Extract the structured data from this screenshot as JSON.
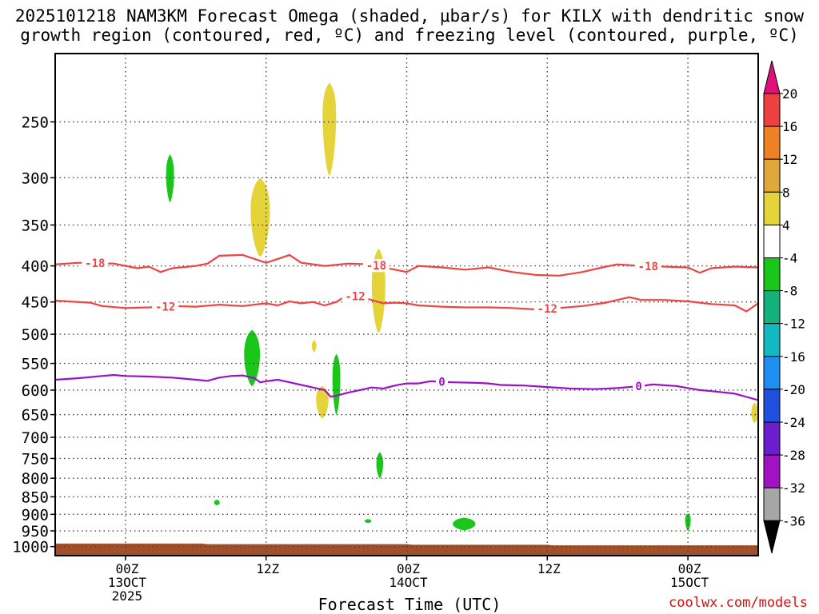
{
  "title": {
    "line1": "2025101218 NAM3KM Forecast Omega (shaded, μbar/s) for KILX with dendritic snow",
    "line2": "growth region (contoured, red, ºC) and freezing level (contoured, purple, ºC)"
  },
  "footer": {
    "xlabel": "Forecast Time (UTC)",
    "credit": "coolwx.com/models"
  },
  "chart_data": {
    "type": "heatmap",
    "x_unit": "forecast hour from 2025-10-12 18Z",
    "xlim": [
      0,
      60
    ],
    "ylim": [
      200,
      1030
    ],
    "y_scale": "log-pressure (inverted)",
    "y_ticks": [
      250,
      300,
      350,
      400,
      450,
      500,
      550,
      600,
      650,
      700,
      750,
      800,
      850,
      900,
      950,
      1000
    ],
    "x_ticks": [
      {
        "x": 6,
        "lines": [
          "00Z",
          "13OCT",
          "2025"
        ]
      },
      {
        "x": 18,
        "lines": [
          "12Z"
        ]
      },
      {
        "x": 30,
        "lines": [
          "00Z",
          "14OCT"
        ]
      },
      {
        "x": 42,
        "lines": [
          "12Z"
        ]
      },
      {
        "x": 54,
        "lines": [
          "00Z",
          "15OCT"
        ]
      }
    ],
    "grid": true,
    "colorbar": {
      "labels": [
        "20",
        "16",
        "12",
        "8",
        "4",
        "-4",
        "-8",
        "-12",
        "-16",
        "-20",
        "-24",
        "-28",
        "-32",
        "-36"
      ],
      "bands": [
        {
          "color": "#ee4040"
        },
        {
          "color": "#ef8124"
        },
        {
          "color": "#e0a838"
        },
        {
          "color": "#e4d43a"
        },
        {
          "color": "#ffffff"
        },
        {
          "color": "#19c619"
        },
        {
          "color": "#14b27a"
        },
        {
          "color": "#14b8c0"
        },
        {
          "color": "#1e8ef0"
        },
        {
          "color": "#2050e0"
        },
        {
          "color": "#6a1ecc"
        },
        {
          "color": "#a012c2"
        },
        {
          "color": "#a6a6a6"
        }
      ],
      "top_arrow_color": "#e0107a",
      "bottom_arrow_color": "#000000"
    },
    "contours": [
      {
        "label": "-18",
        "color": "#ee4444",
        "label_at": [
          3.4,
          27.4,
          50.6
        ],
        "points": [
          [
            0,
            398
          ],
          [
            2,
            396
          ],
          [
            5,
            397
          ],
          [
            7,
            403
          ],
          [
            8,
            401
          ],
          [
            9,
            408
          ],
          [
            10,
            403
          ],
          [
            12,
            400
          ],
          [
            13,
            397
          ],
          [
            14,
            387
          ],
          [
            16,
            386
          ],
          [
            18,
            396
          ],
          [
            19,
            391
          ],
          [
            20,
            386
          ],
          [
            21,
            396
          ],
          [
            23,
            400
          ],
          [
            25,
            397
          ],
          [
            27,
            398
          ],
          [
            28,
            402
          ],
          [
            29,
            405
          ],
          [
            30,
            408
          ],
          [
            31,
            400
          ],
          [
            33,
            402
          ],
          [
            35,
            405
          ],
          [
            37,
            402
          ],
          [
            39,
            408
          ],
          [
            41,
            412
          ],
          [
            43,
            413
          ],
          [
            45,
            408
          ],
          [
            47,
            401
          ],
          [
            48,
            398
          ],
          [
            50,
            400
          ],
          [
            52,
            401
          ],
          [
            54,
            402
          ],
          [
            55,
            409
          ],
          [
            56,
            403
          ],
          [
            58,
            401
          ],
          [
            60,
            402
          ]
        ]
      },
      {
        "label": "-12",
        "color": "#ee4444",
        "label_at": [
          9.4,
          25.6,
          42.0
        ],
        "points": [
          [
            0,
            448
          ],
          [
            3,
            451
          ],
          [
            4,
            456
          ],
          [
            6,
            459
          ],
          [
            8,
            458
          ],
          [
            10,
            456
          ],
          [
            12,
            457
          ],
          [
            14,
            454
          ],
          [
            16,
            456
          ],
          [
            18,
            452
          ],
          [
            19,
            455
          ],
          [
            20,
            449
          ],
          [
            21,
            452
          ],
          [
            22,
            450
          ],
          [
            23,
            455
          ],
          [
            24,
            450
          ],
          [
            25,
            439
          ],
          [
            26,
            443
          ],
          [
            27,
            447
          ],
          [
            28,
            452
          ],
          [
            29,
            451
          ],
          [
            30,
            452
          ],
          [
            31,
            455
          ],
          [
            33,
            457
          ],
          [
            35,
            458
          ],
          [
            37,
            458
          ],
          [
            39,
            459
          ],
          [
            41,
            461
          ],
          [
            43,
            459
          ],
          [
            45,
            456
          ],
          [
            47,
            451
          ],
          [
            49,
            443
          ],
          [
            50,
            447
          ],
          [
            52,
            447
          ],
          [
            54,
            449
          ],
          [
            56,
            453
          ],
          [
            58,
            455
          ],
          [
            59,
            464
          ],
          [
            60,
            452
          ]
        ]
      },
      {
        "label": "0",
        "color": "#9b10c8",
        "label_at": [
          33.0,
          49.8
        ],
        "points": [
          [
            0,
            580
          ],
          [
            2,
            577
          ],
          [
            4,
            573
          ],
          [
            5,
            571
          ],
          [
            6,
            573
          ],
          [
            8,
            574
          ],
          [
            10,
            576
          ],
          [
            12,
            580
          ],
          [
            13,
            582
          ],
          [
            14,
            576
          ],
          [
            15,
            573
          ],
          [
            16,
            572
          ],
          [
            17,
            577
          ],
          [
            17.5,
            585
          ],
          [
            18,
            583
          ],
          [
            19,
            580
          ],
          [
            20,
            585
          ],
          [
            22,
            595
          ],
          [
            23,
            600
          ],
          [
            23.5,
            613
          ],
          [
            24,
            611
          ],
          [
            25,
            605
          ],
          [
            26,
            600
          ],
          [
            27,
            595
          ],
          [
            28,
            597
          ],
          [
            29,
            591
          ],
          [
            30,
            587
          ],
          [
            31,
            587
          ],
          [
            32,
            583
          ],
          [
            34,
            585
          ],
          [
            36,
            586
          ],
          [
            37,
            587
          ],
          [
            38,
            590
          ],
          [
            40,
            591
          ],
          [
            42,
            594
          ],
          [
            44,
            597
          ],
          [
            46,
            598
          ],
          [
            48,
            596
          ],
          [
            50,
            592
          ],
          [
            51,
            589
          ],
          [
            53,
            592
          ],
          [
            55,
            600
          ],
          [
            56,
            602
          ],
          [
            58,
            607
          ],
          [
            60,
            620
          ]
        ]
      }
    ],
    "omega_blobs": [
      {
        "value": 6,
        "color": "#e4d43a",
        "x": 23.4,
        "p_top": 220,
        "p_bottom": 298,
        "peak": 240,
        "half_width": 0.6
      },
      {
        "value": 6,
        "color": "#e4d43a",
        "x": 17.5,
        "p_top": 300,
        "p_bottom": 388,
        "peak": 330,
        "half_width": 0.85
      },
      {
        "value": 6,
        "color": "#e4d43a",
        "x": 27.6,
        "p_top": 378,
        "p_bottom": 498,
        "peak": 420,
        "half_width": 0.6
      },
      {
        "value": 6,
        "color": "#e4d43a",
        "x": 22.1,
        "p_top": 510,
        "p_bottom": 530,
        "peak": 518,
        "half_width": 0.2
      },
      {
        "value": 6,
        "color": "#e4d43a",
        "x": 22.8,
        "p_top": 592,
        "p_bottom": 658,
        "peak": 615,
        "half_width": 0.55
      },
      {
        "value": 6,
        "color": "#e4d43a",
        "x": 59.7,
        "p_top": 625,
        "p_bottom": 668,
        "peak": 645,
        "half_width": 0.3
      },
      {
        "value": -6,
        "color": "#19c619",
        "x": 9.8,
        "p_top": 278,
        "p_bottom": 325,
        "peak": 295,
        "half_width": 0.35
      },
      {
        "value": -6,
        "color": "#19c619",
        "x": 16.8,
        "p_top": 493,
        "p_bottom": 592,
        "peak": 530,
        "half_width": 0.7
      },
      {
        "value": -6,
        "color": "#19c619",
        "x": 24.0,
        "p_top": 533,
        "p_bottom": 650,
        "peak": 570,
        "half_width": 0.35
      },
      {
        "value": -6,
        "color": "#19c619",
        "x": 27.7,
        "p_top": 735,
        "p_bottom": 800,
        "peak": 760,
        "half_width": 0.3
      },
      {
        "value": -6,
        "color": "#19c619",
        "x": 13.8,
        "p_top": 858,
        "p_bottom": 874,
        "peak": 866,
        "half_width": 0.25
      },
      {
        "value": -6,
        "color": "#19c619",
        "x": 26.7,
        "p_top": 914,
        "p_bottom": 926,
        "peak": 920,
        "half_width": 0.3
      },
      {
        "value": -6,
        "color": "#19c619",
        "x": 34.9,
        "p_top": 910,
        "p_bottom": 948,
        "peak": 928,
        "half_width": 1.0
      },
      {
        "value": -6,
        "color": "#19c619",
        "x": 54.0,
        "p_top": 898,
        "p_bottom": 950,
        "peak": 912,
        "half_width": 0.25
      }
    ],
    "terrain": {
      "color": "#a0502a",
      "surface": [
        [
          0,
          990
        ],
        [
          12.5,
          990
        ],
        [
          13,
          992
        ],
        [
          30,
          992
        ],
        [
          30.5,
          994
        ],
        [
          42,
          994
        ],
        [
          42.5,
          996
        ],
        [
          60,
          996
        ]
      ]
    }
  }
}
